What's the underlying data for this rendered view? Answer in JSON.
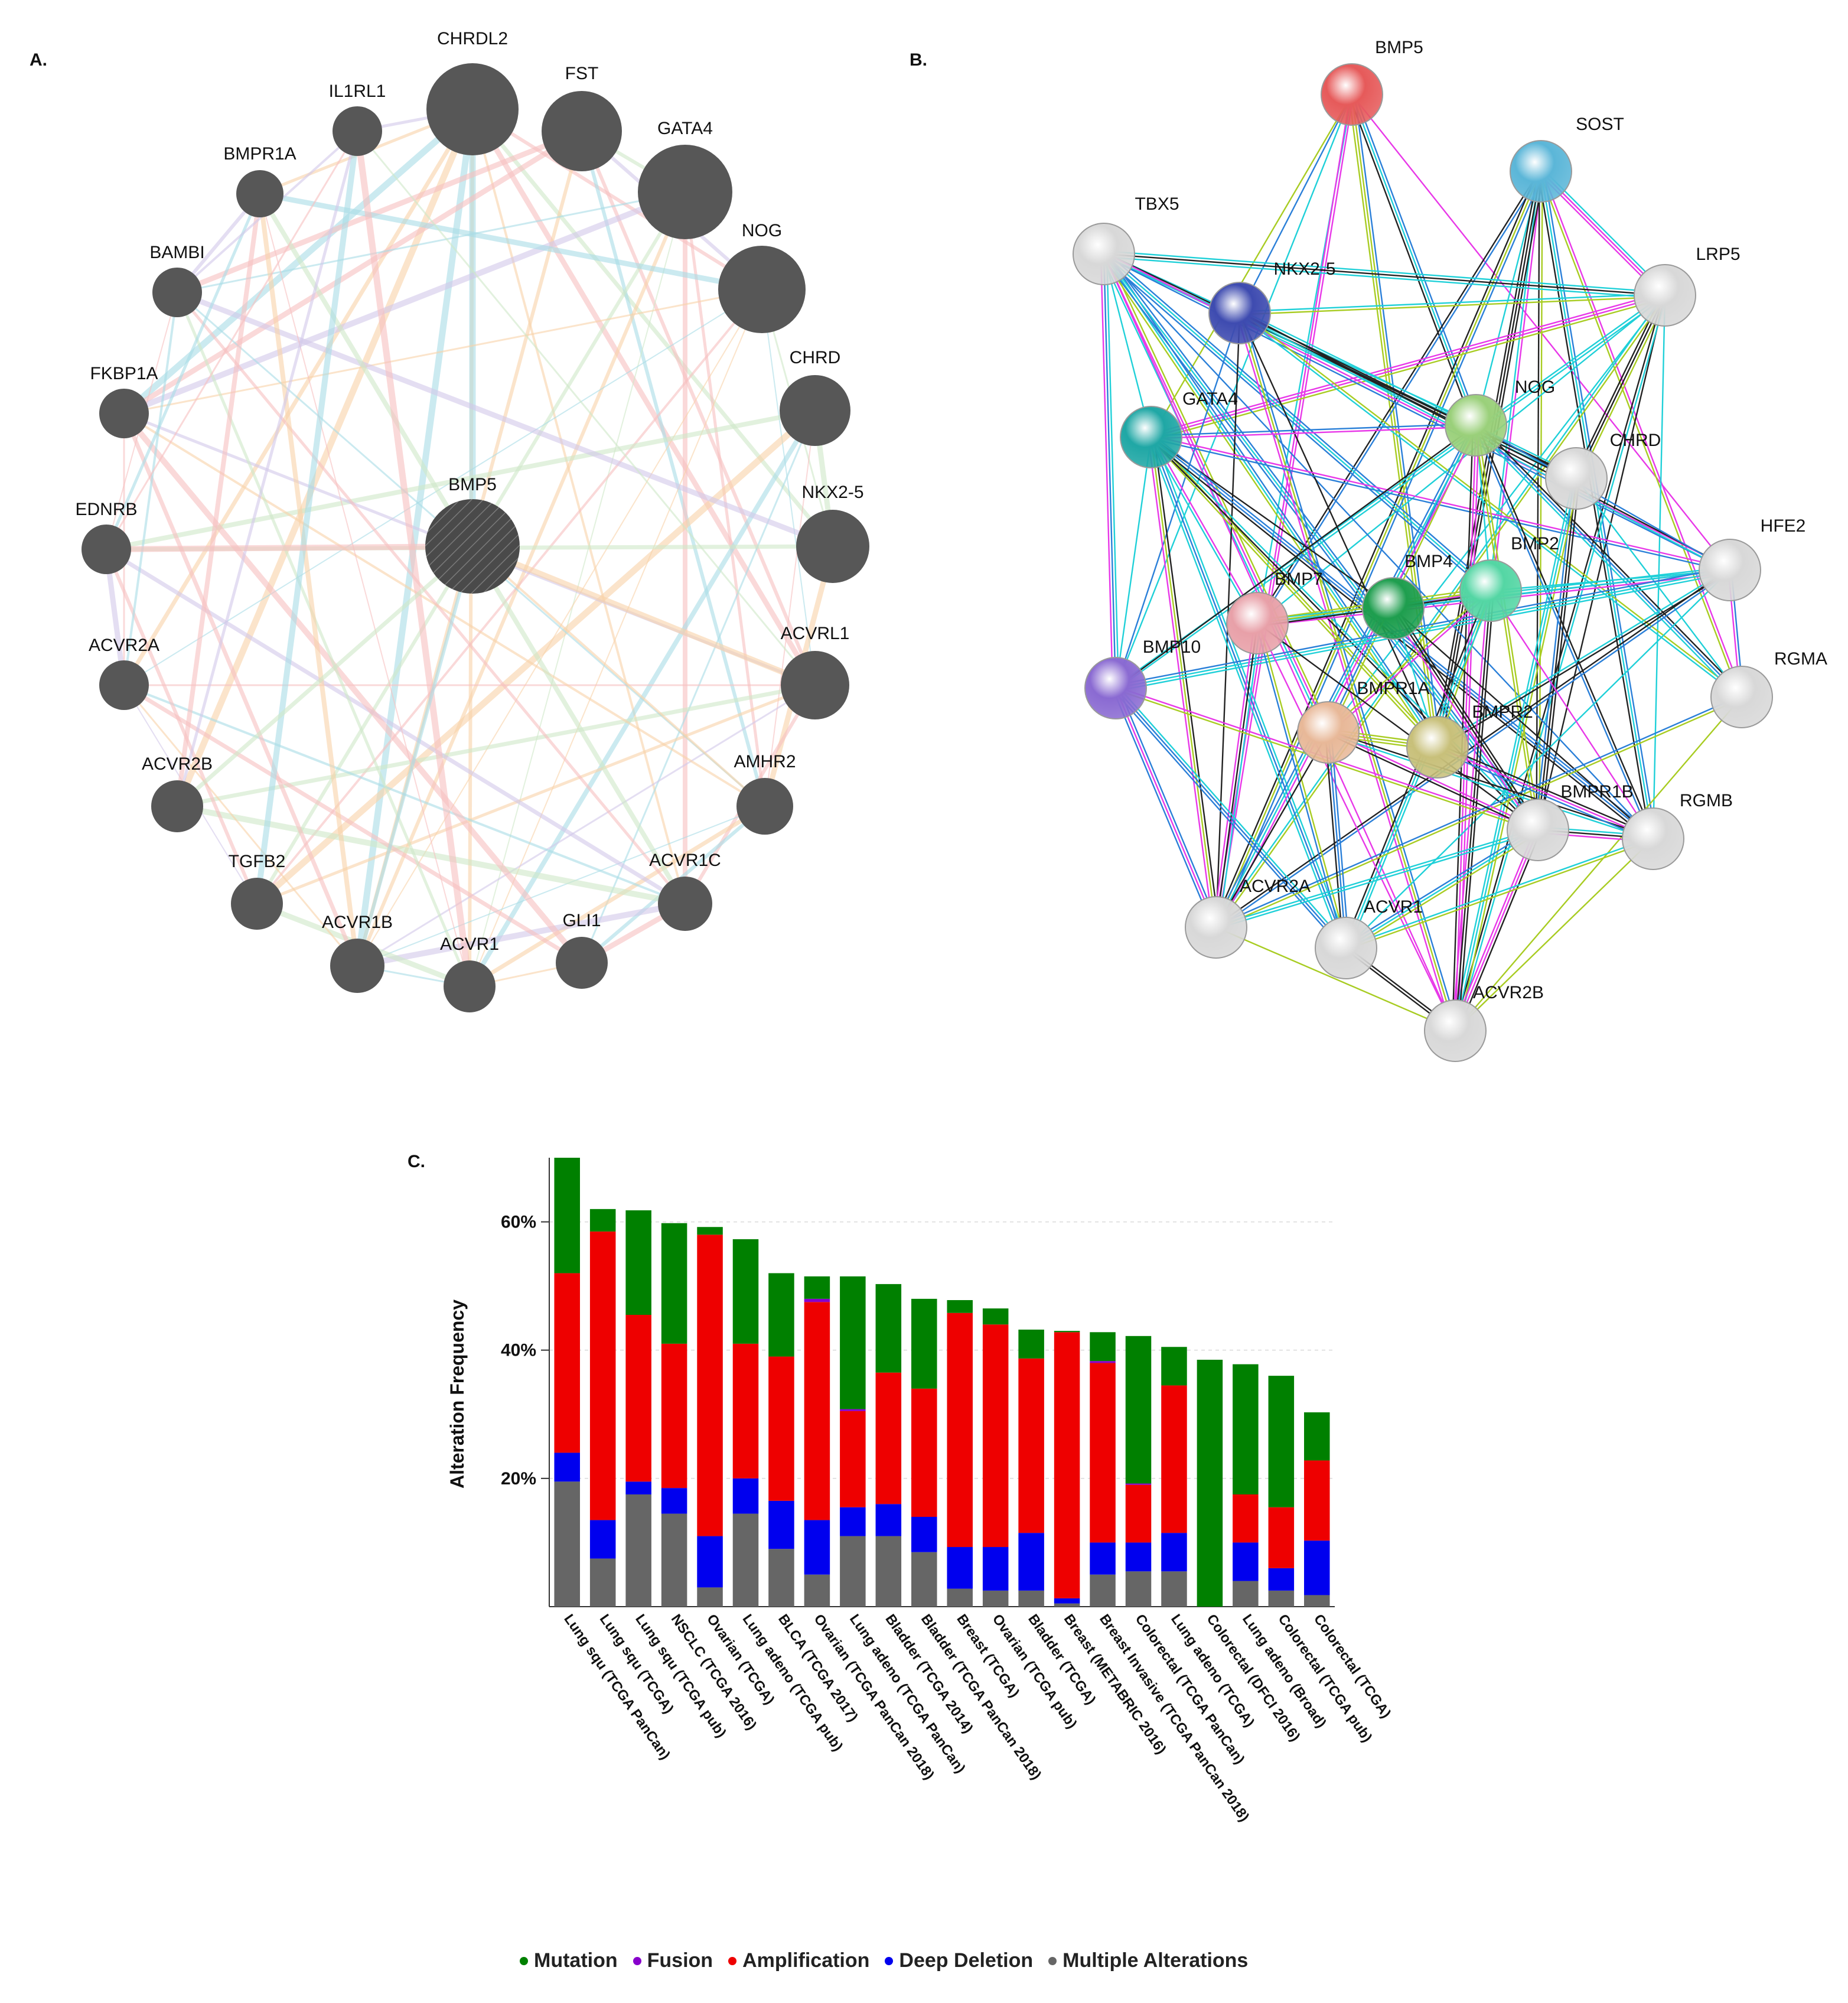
{
  "panels": {
    "a": {
      "letter": "A.",
      "center": "BMP5",
      "nodes": [
        "CHRDL2",
        "FST",
        "GATA4",
        "NOG",
        "CHRD",
        "NKX2-5",
        "ACVRL1",
        "AMHR2",
        "ACVR1C",
        "GLI1",
        "ACVR1",
        "ACVR1B",
        "TGFB2",
        "ACVR2B",
        "ACVR2A",
        "EDNRB",
        "FKBP1A",
        "BAMBI",
        "BMPR1A",
        "IL1RL1"
      ]
    },
    "b": {
      "letter": "B.",
      "nodes": [
        "BMP5",
        "SOST",
        "LRP5",
        "TBX5",
        "NKX2-5",
        "GATA4",
        "NOG",
        "CHRD",
        "HFE2",
        "BMP2",
        "BMP4",
        "BMP7",
        "BMP10",
        "RGMA",
        "BMPR1A",
        "BMPR2",
        "BMPR1B",
        "RGMB",
        "ACVR2A",
        "ACVR1",
        "ACVR2B"
      ],
      "colors": {
        "BMP5": "#e65a5a",
        "SOST": "#5bb6d8",
        "LRP5": "#d8d8d8",
        "TBX5": "#d8d8d8",
        "NKX2-5": "#3e4bb0",
        "GATA4": "#1fa7a5",
        "NOG": "#9ad07a",
        "CHRD": "#d8d8d8",
        "HFE2": "#d8d8d8",
        "BMP2": "#54d6a4",
        "BMP4": "#1e9e4e",
        "BMP7": "#e8a0a8",
        "BMP10": "#8a6ad2",
        "RGMA": "#d8d8d8",
        "BMPR1A": "#e8b898",
        "BMPR2": "#c8c07a",
        "BMPR1B": "#d8d8d8",
        "RGMB": "#d8d8d8",
        "ACVR2A": "#d8d8d8",
        "ACVR1": "#d8d8d8",
        "ACVR2B": "#d8d8d8"
      }
    },
    "c": {
      "letter": "C."
    }
  },
  "chart_data": {
    "type": "bar",
    "stacked": true,
    "ylabel": "Alteration Frequency",
    "yticks": [
      "20%",
      "40%",
      "60%"
    ],
    "ylim": [
      0,
      70
    ],
    "grid": true,
    "categories": [
      "Lung squ (TCGA PanCan)",
      "Lung squ (TCGA)",
      "Lung squ (TCGA pub)",
      "NSCLC (TCGA 2016)",
      "Ovarian (TCGA)",
      "Lung adeno (TCGA pub)",
      "BLCA (TCGA 2017)",
      "Ovarian (TCGA PanCan 2018)",
      "Lung adeno (TCGA PanCan)",
      "Bladder (TCGA 2014)",
      "Bladder (TCGA PanCan 2018)",
      "Breast (TCGA)",
      "Ovarian (TCGA pub)",
      "Bladder (TCGA)",
      "Breast (METABRIC 2016)",
      "Breast Invasive (TCGA PanCan 2018)",
      "Colorectal (TCGA PanCan)",
      "Lung adeno (TCGA)",
      "Colorectal (DFCI 2016)",
      "Lung adeno (Broad)",
      "Colorectal (TCGA pub)",
      "Colorectal (TCGA)"
    ],
    "series": [
      {
        "name": "Multiple Alterations",
        "color": "#666666",
        "values": [
          19.5,
          7.5,
          17.5,
          14.5,
          3.0,
          14.5,
          9.0,
          5.0,
          11.0,
          11.0,
          8.5,
          2.8,
          2.5,
          2.5,
          0.5,
          5.0,
          5.5,
          5.5,
          0.0,
          4.0,
          2.5,
          1.8
        ]
      },
      {
        "name": "Deep Deletion",
        "color": "#0000ee",
        "values": [
          4.5,
          6.0,
          2.0,
          4.0,
          8.0,
          5.5,
          7.5,
          8.5,
          4.5,
          5.0,
          5.5,
          6.5,
          6.8,
          9.0,
          0.8,
          5.0,
          4.5,
          6.0,
          0.0,
          6.0,
          3.5,
          8.5
        ]
      },
      {
        "name": "Amplification",
        "color": "#ee0000",
        "values": [
          28.0,
          45.0,
          26.0,
          22.5,
          47.0,
          21.0,
          22.5,
          34.0,
          15.0,
          20.5,
          20.0,
          36.5,
          34.7,
          27.2,
          41.5,
          28.0,
          9.0,
          23.0,
          0.0,
          7.5,
          9.5,
          12.5
        ]
      },
      {
        "name": "Fusion",
        "color": "#8800cc",
        "values": [
          0,
          0,
          0,
          0,
          0,
          0,
          0,
          0.5,
          0.3,
          0,
          0,
          0,
          0,
          0,
          0,
          0.3,
          0.2,
          0,
          0,
          0,
          0,
          0
        ]
      },
      {
        "name": "Mutation",
        "color": "#008000",
        "values": [
          18.0,
          3.5,
          16.3,
          18.8,
          1.2,
          16.3,
          13.0,
          3.5,
          20.7,
          13.8,
          14.0,
          2.0,
          2.5,
          4.5,
          0.2,
          4.5,
          23.0,
          6.0,
          38.5,
          20.3,
          20.5,
          7.5
        ]
      }
    ],
    "legend": [
      "Mutation",
      "Fusion",
      "Amplification",
      "Deep Deletion",
      "Multiple Alterations"
    ]
  }
}
